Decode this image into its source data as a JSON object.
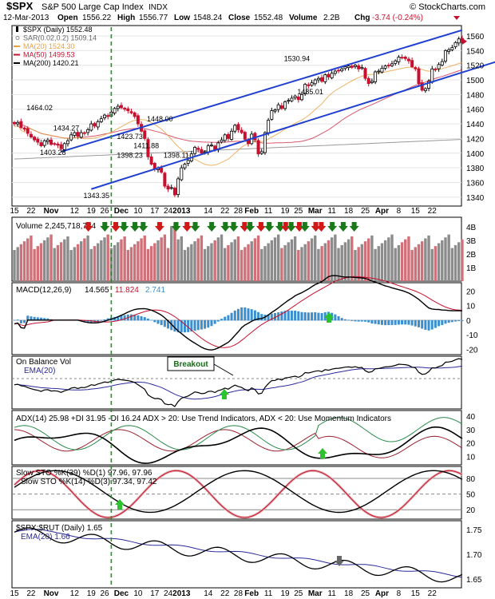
{
  "header": {
    "symbol": "$SPX",
    "name": "S&P 500 Large Cap Index",
    "exchange": "INDX",
    "copyright": "© StockCharts.com",
    "date": "12-Mar-2013",
    "open_label": "Open",
    "open": "1556.22",
    "high_label": "High",
    "high": "1556.77",
    "low_label": "Low",
    "low": "1548.24",
    "close_label": "Close",
    "close": "1552.48",
    "volume_label": "Volume",
    "volume": "2.2B",
    "chg_label": "Chg",
    "chg": "-3.74 (-0.24%)"
  },
  "x_axis": {
    "labels": [
      {
        "text": "15",
        "i": 0
      },
      {
        "text": "22",
        "i": 5
      },
      {
        "text": "Nov",
        "i": 11
      },
      {
        "text": "12",
        "i": 18
      },
      {
        "text": "19",
        "i": 23
      },
      {
        "text": "26",
        "i": 27
      },
      {
        "text": "Dec",
        "i": 32
      },
      {
        "text": "10",
        "i": 37
      },
      {
        "text": "17",
        "i": 42
      },
      {
        "text": "24",
        "i": 46
      },
      {
        "text": "2013",
        "i": 50
      },
      {
        "text": "14",
        "i": 58
      },
      {
        "text": "22",
        "i": 63
      },
      {
        "text": "28",
        "i": 67
      },
      {
        "text": "Feb",
        "i": 71
      },
      {
        "text": "11",
        "i": 76
      },
      {
        "text": "19",
        "i": 81
      },
      {
        "text": "25",
        "i": 85
      },
      {
        "text": "Mar",
        "i": 90
      },
      {
        "text": "11",
        "i": 95
      },
      {
        "text": "18",
        "i": 100
      },
      {
        "text": "25",
        "i": 105
      },
      {
        "text": "Apr",
        "i": 110
      },
      {
        "text": "8",
        "i": 115
      },
      {
        "text": "15",
        "i": 120
      },
      {
        "text": "22",
        "i": 125
      }
    ],
    "bold_labels": [
      "Nov",
      "Dec",
      "2013",
      "Feb",
      "Mar",
      "Apr"
    ],
    "vertical_marker_index": 29
  },
  "colors": {
    "up": "#000000",
    "down": "#c8102e",
    "ma20": "#e8a040",
    "ma50": "#c8102e",
    "ma200": "#999999",
    "channel": "#1f3fd0",
    "volume_up": "#8c8c8c",
    "volume_down": "#d07078",
    "macd_hist": "#3a8fd0",
    "ema": "#2a2a9a",
    "adx_plus": "#2a8a4a",
    "adx_minus": "#9a2030",
    "stoch_d": "#c8102e",
    "stoch_band": "#e0b0b0",
    "arrow_green": "#2fc12f",
    "arrow_dark_green": "#1a7a1a",
    "arrow_red": "#d01818",
    "arrow_gray": "#666666",
    "marker": "#1a9a1a"
  },
  "panels": {
    "price": {
      "legend": [
        {
          "text": "$SPX (Daily) 1552.48",
          "color": "#000000",
          "icon": "candle-icon"
        },
        {
          "text": "SAR(0.02,0.2) 1509.14",
          "color": "#666666",
          "icon": "dot-icon"
        },
        {
          "text": "MA(20) 1524.30",
          "color": "#e8a040",
          "icon": "line-icon"
        },
        {
          "text": "MA(50) 1499.53",
          "color": "#c8102e",
          "icon": "line-icon"
        },
        {
          "text": "MA(200) 1420.21",
          "color": "#000000",
          "icon": "line-icon"
        }
      ],
      "ticks": [
        "1560",
        "1540",
        "1520",
        "1500",
        "1480",
        "1460",
        "1440",
        "1420",
        "1400",
        "1380",
        "1360",
        "1340"
      ],
      "annotations": [
        {
          "text": "1464.02",
          "i": 7,
          "y": 1463
        },
        {
          "text": "1434.27",
          "i": 15,
          "y": 1435
        },
        {
          "text": "1403.28",
          "i": 11,
          "y": 1402
        },
        {
          "text": "1343.35",
          "i": 24,
          "y": 1343
        },
        {
          "text": "1423.73",
          "i": 34,
          "y": 1424
        },
        {
          "text": "1398.23",
          "i": 34,
          "y": 1398
        },
        {
          "text": "1411.88",
          "i": 39,
          "y": 1411
        },
        {
          "text": "1448.00",
          "i": 43,
          "y": 1448
        },
        {
          "text": "1398.11",
          "i": 48,
          "y": 1398
        },
        {
          "text": "1530.94",
          "i": 84,
          "y": 1530
        },
        {
          "text": "1485.01",
          "i": 88,
          "y": 1485
        }
      ]
    },
    "volume": {
      "legend": "Volume 2,245,718,784",
      "ticks": [
        "4B",
        "3B",
        "2B",
        "1B"
      ]
    },
    "macd": {
      "legend_label": "MACD(12,26,9)",
      "legend_values": [
        "14.565",
        "11.824",
        "2.741"
      ],
      "ticks": [
        "20",
        "10",
        "0",
        "-10",
        "-20"
      ]
    },
    "obv": {
      "legend": [
        "On Balance Vol",
        "EMA(20)"
      ],
      "breakout_label": "Breakout"
    },
    "adx": {
      "legend": "ADX(14) 25.98 +DI 31.95 -DI 16.24 ADX > 20: Use Trend Indicators, ADX < 20: Use Momentum Indicators",
      "ticks": [
        "40",
        "30",
        "20",
        "10"
      ]
    },
    "stoch": {
      "legend": [
        "Slow STO %K(39) %D(1) 97.96, 97.96",
        "Slow STO %K(14) %D(3) 97.34, 97.42"
      ],
      "ticks": [
        "80",
        "50",
        "20"
      ]
    },
    "ratio": {
      "legend": [
        "$SPX:$RUT (Daily) 1.65",
        "EMA(20) 1.66"
      ],
      "ticks": [
        "1.75",
        "1.70",
        "1.65"
      ]
    }
  },
  "chart_data": {
    "type": "candlestick",
    "title": "$SPX S&P 500 Large Cap Index INDX",
    "x_start_date": "2012-10-15",
    "x_end_date": "2013-03-12",
    "ylim": [
      1330,
      1572
    ],
    "price_series_close": [
      1440,
      1442,
      1435,
      1433,
      1427,
      1422,
      1418,
      1415,
      1410,
      1417,
      1418,
      1412,
      1413,
      1411,
      1406,
      1413,
      1417,
      1425,
      1428,
      1423,
      1428,
      1427,
      1432,
      1440,
      1437,
      1443,
      1447,
      1452,
      1450,
      1456,
      1461,
      1464,
      1462,
      1460,
      1458,
      1455,
      1450,
      1440,
      1430,
      1420,
      1395,
      1385,
      1378,
      1379,
      1374,
      1355,
      1351,
      1353,
      1343,
      1365,
      1380,
      1385,
      1390,
      1399,
      1408,
      1405,
      1400,
      1402,
      1410,
      1411,
      1405,
      1414,
      1418,
      1425,
      1420,
      1430,
      1438,
      1432,
      1428,
      1419,
      1413,
      1426,
      1418,
      1399,
      1402,
      1428,
      1445,
      1458,
      1459,
      1466,
      1461,
      1470,
      1472,
      1475,
      1478,
      1473,
      1480,
      1494,
      1492,
      1496,
      1500,
      1502,
      1498,
      1507,
      1504,
      1509,
      1512,
      1513,
      1515,
      1518,
      1519,
      1517,
      1520,
      1515,
      1517,
      1502,
      1495,
      1498,
      1511,
      1512,
      1516,
      1519,
      1520,
      1522,
      1526,
      1531,
      1530,
      1529,
      1526,
      1518,
      1515,
      1495,
      1486,
      1488,
      1498,
      1515,
      1514,
      1521,
      1525,
      1540,
      1541,
      1544,
      1551,
      1556,
      1552
    ]
  }
}
